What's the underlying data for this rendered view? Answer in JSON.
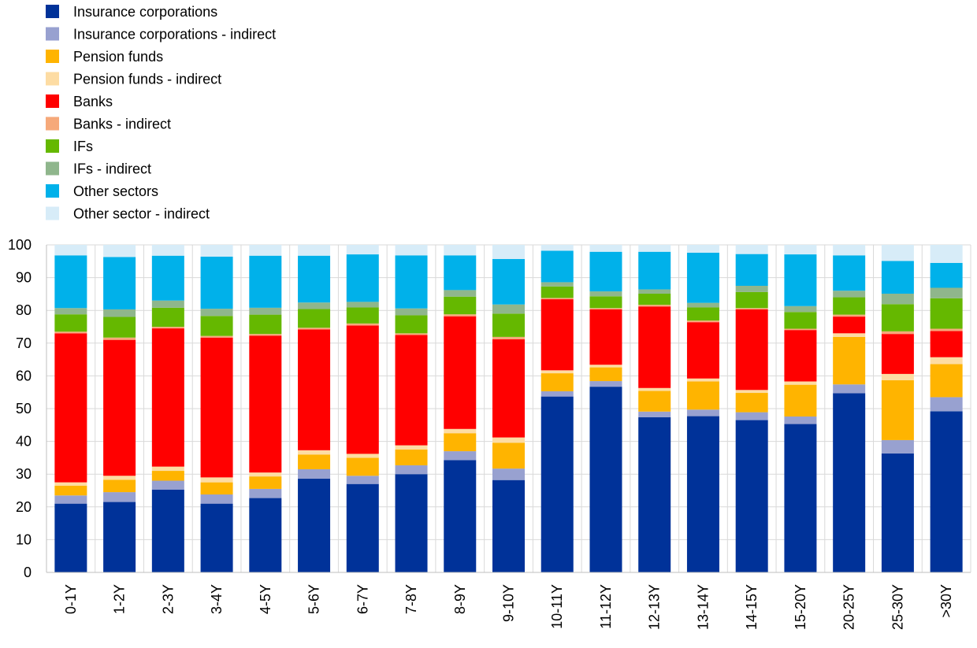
{
  "chart_data": {
    "type": "bar",
    "stacked": true,
    "title": "",
    "xlabel": "",
    "ylabel": "",
    "ylim": [
      0,
      100
    ],
    "yticks": [
      0,
      10,
      20,
      30,
      40,
      50,
      60,
      70,
      80,
      90,
      100
    ],
    "grid": true,
    "legend_position": "top-left",
    "categories": [
      "0-1Y",
      "1-2Y",
      "2-3Y",
      "3-4Y",
      "4-5Y",
      "5-6Y",
      "6-7Y",
      "7-8Y",
      "8-9Y",
      "9-10Y",
      "10-11Y",
      "11-12Y",
      "12-13Y",
      "13-14Y",
      "14-15Y",
      "15-20Y",
      "20-25Y",
      "25-30Y",
      ">30Y"
    ],
    "series": [
      {
        "name": "Insurance corporations",
        "color": "#003299",
        "values": [
          21,
          21.5,
          25.3,
          21,
          22.7,
          28.6,
          27,
          30,
          34.3,
          28.2,
          53.7,
          56.7,
          47.4,
          47.7,
          46.5,
          45.3,
          54.7,
          36.3,
          49.2
        ]
      },
      {
        "name": "Insurance corporations - indirect",
        "color": "#98a1d0",
        "values": [
          2.5,
          3,
          2.7,
          2.8,
          2.8,
          2.9,
          2.5,
          2.7,
          2.7,
          3.5,
          1.6,
          1.7,
          1.7,
          2,
          2.4,
          2.3,
          2.7,
          4.1,
          4.3
        ]
      },
      {
        "name": "Pension funds",
        "color": "#ffb400",
        "values": [
          3,
          3.8,
          3,
          3.7,
          3.8,
          4.5,
          5.5,
          4.8,
          5.5,
          7.9,
          5.5,
          4.2,
          6.3,
          8.6,
          5.9,
          9.7,
          14.5,
          18.3,
          10.1
        ]
      },
      {
        "name": "Pension funds - indirect",
        "color": "#fddca3",
        "values": [
          1,
          1.2,
          1.3,
          1.5,
          1.2,
          1.3,
          1.2,
          1.3,
          1.3,
          1.6,
          0.9,
          0.8,
          0.9,
          0.9,
          0.9,
          1,
          1.1,
          1.9,
          2.1
        ]
      },
      {
        "name": "Banks",
        "color": "#ff0000",
        "values": [
          45.5,
          41.5,
          42.2,
          42.7,
          41.8,
          36.9,
          39.2,
          33.7,
          34.4,
          30,
          21.7,
          16.9,
          24.9,
          17.2,
          24.6,
          15.7,
          5.1,
          12.2,
          8
        ]
      },
      {
        "name": "Banks - indirect",
        "color": "#f6a97a",
        "values": [
          0.5,
          0.7,
          0.5,
          0.5,
          0.5,
          0.5,
          0.6,
          0.5,
          0.6,
          0.7,
          0.4,
          0.4,
          0.5,
          0.5,
          0.4,
          0.4,
          0.6,
          0.8,
          0.7
        ]
      },
      {
        "name": "IFs",
        "color": "#65b800",
        "values": [
          5.3,
          6.3,
          5.8,
          6.1,
          5.9,
          5.7,
          4.9,
          5.5,
          5.4,
          7.1,
          3.5,
          3.6,
          3.4,
          4,
          4.9,
          5.1,
          5.3,
          8.3,
          9.3
        ]
      },
      {
        "name": "IFs - indirect",
        "color": "#8fb68c",
        "values": [
          1.9,
          2.3,
          2.2,
          2.2,
          2.1,
          2,
          1.7,
          2.1,
          2,
          2.8,
          1.3,
          1.5,
          1.3,
          1.4,
          1.9,
          1.8,
          2,
          3.2,
          3.2
        ]
      },
      {
        "name": "Other sectors",
        "color": "#00b1ea",
        "values": [
          16.1,
          16,
          13.7,
          15.9,
          15.9,
          14.3,
          14.5,
          16.2,
          10.6,
          13.9,
          9.6,
          12.1,
          11.5,
          15.3,
          9.7,
          15.8,
          10.8,
          10,
          7.6
        ]
      },
      {
        "name": "Other sector - indirect",
        "color": "#d7ecf8",
        "values": [
          3.2,
          3.7,
          3.3,
          3.6,
          3.3,
          3.3,
          2.9,
          3.2,
          3.2,
          4.3,
          1.8,
          2.1,
          2.1,
          2.4,
          2.8,
          2.9,
          3.2,
          4.9,
          5.5
        ]
      }
    ]
  }
}
